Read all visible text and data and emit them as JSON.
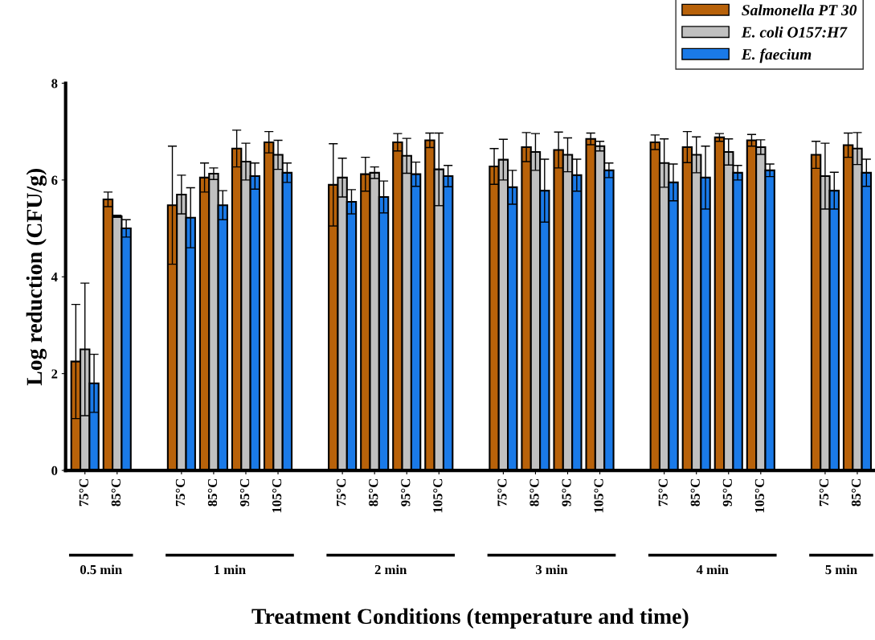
{
  "chart_data": {
    "type": "bar",
    "xlabel": "Treatment Conditions (temperature and time)",
    "ylabel": "Log reduction (CFU/g)",
    "categories": [
      "75°C",
      "85°C",
      null,
      "75°C",
      "85°C",
      "95°C",
      "105°C",
      null,
      "75°C",
      "85°C",
      "95°C",
      "105°C",
      null,
      "75°C",
      "85°C",
      "95°C",
      "105°C",
      null,
      "75°C",
      "85°C",
      "95°C",
      "105°C",
      null,
      "75°C",
      "85°C"
    ],
    "series": [
      {
        "name": "Salmonella PT 30",
        "color": "#b8620a",
        "values": [
          2.25,
          5.6,
          null,
          5.48,
          6.05,
          6.65,
          6.78,
          null,
          5.9,
          6.12,
          6.78,
          6.82,
          null,
          6.28,
          6.68,
          6.62,
          6.85,
          null,
          6.78,
          6.68,
          6.88,
          6.82,
          null,
          6.52,
          6.72
        ],
        "errors": [
          1.18,
          0.15,
          null,
          1.22,
          0.3,
          0.38,
          0.22,
          null,
          0.85,
          0.35,
          0.18,
          0.15,
          null,
          0.37,
          0.3,
          0.37,
          0.12,
          null,
          0.15,
          0.32,
          0.08,
          0.12,
          null,
          0.28,
          0.25
        ]
      },
      {
        "name": "E. coli O157:H7",
        "color": "#c0c0c0",
        "values": [
          2.5,
          5.25,
          null,
          5.7,
          6.13,
          6.38,
          6.52,
          null,
          6.05,
          6.15,
          6.5,
          6.22,
          null,
          6.42,
          6.58,
          6.52,
          6.7,
          null,
          6.35,
          6.52,
          6.58,
          6.68,
          null,
          6.08,
          6.65
        ],
        "errors": [
          1.37,
          0.02,
          null,
          0.4,
          0.12,
          0.38,
          0.3,
          null,
          0.4,
          0.12,
          0.36,
          0.75,
          null,
          0.42,
          0.38,
          0.35,
          0.1,
          null,
          0.5,
          0.37,
          0.27,
          0.15,
          null,
          0.68,
          0.33
        ]
      },
      {
        "name": "E. faecium",
        "color": "#1a7ae8",
        "values": [
          1.8,
          5.0,
          null,
          5.22,
          5.48,
          6.08,
          6.15,
          null,
          5.55,
          5.65,
          6.12,
          6.08,
          null,
          5.85,
          5.78,
          6.1,
          6.2,
          null,
          5.95,
          6.05,
          6.15,
          6.2,
          null,
          5.78,
          6.15
        ],
        "errors": [
          0.6,
          0.18,
          null,
          0.62,
          0.3,
          0.27,
          0.2,
          null,
          0.25,
          0.33,
          0.25,
          0.22,
          null,
          0.35,
          0.65,
          0.33,
          0.15,
          null,
          0.38,
          0.65,
          0.15,
          0.13,
          null,
          0.38,
          0.28
        ]
      }
    ],
    "annotations": [
      "0.5 min",
      "1 min",
      "2 min",
      "3 min",
      "4 min",
      "5 min"
    ],
    "ylim": [
      0,
      8
    ],
    "yticks": [
      0,
      2,
      4,
      6,
      8
    ],
    "legend": "top right",
    "grid": false
  }
}
